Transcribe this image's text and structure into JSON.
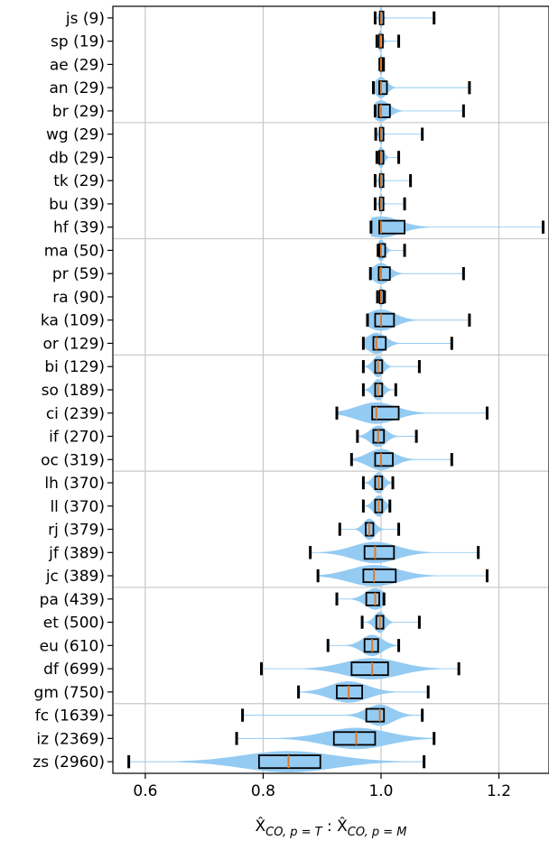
{
  "chart_data": {
    "type": "violin-box",
    "orientation": "horizontal",
    "xlabel_parts": {
      "base": "X̂",
      "sub_left": "CO, p = T",
      "separator": " : ",
      "sub_right": "CO, p = M"
    },
    "xlim": [
      0.545,
      1.285
    ],
    "xticks": [
      0.6,
      0.8,
      1.0,
      1.2
    ],
    "xtick_labels": [
      "0.6",
      "0.8",
      "1.0",
      "1.2"
    ],
    "grid": true,
    "group_separators_after": [
      5,
      10,
      15,
      20,
      25,
      30
    ],
    "colors": {
      "violin": "#8ec8f2",
      "box": "#000000",
      "median": "#e07b2a",
      "grid": "#c8c8c8",
      "whisker_cap": "#000000"
    },
    "categories": [
      {
        "label": "js (9)",
        "min": 0.99,
        "q1": 0.998,
        "median": 1.0,
        "q3": 1.0,
        "max": 1.09
      },
      {
        "label": "sp (19)",
        "min": 0.993,
        "q1": 0.997,
        "median": 0.999,
        "q3": 1.002,
        "max": 1.03
      },
      {
        "label": "ae (29)",
        "min": 0.998,
        "q1": 0.999,
        "median": 1.0,
        "q3": 1.0,
        "max": 1.002
      },
      {
        "label": "an (29)",
        "min": 0.987,
        "q1": 0.997,
        "median": 1.0,
        "q3": 1.01,
        "max": 1.15
      },
      {
        "label": "br (29)",
        "min": 0.99,
        "q1": 0.996,
        "median": 1.0,
        "q3": 1.015,
        "max": 1.14
      },
      {
        "label": "wg (29)",
        "min": 0.991,
        "q1": 0.998,
        "median": 1.0,
        "q3": 1.002,
        "max": 1.07
      },
      {
        "label": "db (29)",
        "min": 0.993,
        "q1": 0.997,
        "median": 1.0,
        "q3": 1.004,
        "max": 1.03
      },
      {
        "label": "tk (29)",
        "min": 0.99,
        "q1": 0.998,
        "median": 1.0,
        "q3": 1.0,
        "max": 1.05
      },
      {
        "label": "bu (39)",
        "min": 0.99,
        "q1": 0.998,
        "median": 1.0,
        "q3": 1.0,
        "max": 1.04
      },
      {
        "label": "hf (39)",
        "min": 0.983,
        "q1": 0.997,
        "median": 1.0,
        "q3": 1.04,
        "max": 1.275
      },
      {
        "label": "ma (50)",
        "min": 0.995,
        "q1": 0.998,
        "median": 1.0,
        "q3": 1.007,
        "max": 1.04
      },
      {
        "label": "pr (59)",
        "min": 0.982,
        "q1": 0.996,
        "median": 1.0,
        "q3": 1.015,
        "max": 1.14
      },
      {
        "label": "ra (90)",
        "min": 0.994,
        "q1": 0.998,
        "median": 1.0,
        "q3": 1.002,
        "max": 1.006
      },
      {
        "label": "ka (109)",
        "min": 0.977,
        "q1": 0.99,
        "median": 1.0,
        "q3": 1.022,
        "max": 1.15
      },
      {
        "label": "or (129)",
        "min": 0.97,
        "q1": 0.987,
        "median": 0.992,
        "q3": 1.008,
        "max": 1.12
      },
      {
        "label": "bi (129)",
        "min": 0.97,
        "q1": 0.99,
        "median": 0.995,
        "q3": 1.002,
        "max": 1.065
      },
      {
        "label": "so (189)",
        "min": 0.97,
        "q1": 0.99,
        "median": 0.995,
        "q3": 1.002,
        "max": 1.025
      },
      {
        "label": "ci (239)",
        "min": 0.925,
        "q1": 0.985,
        "median": 0.992,
        "q3": 1.03,
        "max": 1.18
      },
      {
        "label": "if (270)",
        "min": 0.96,
        "q1": 0.987,
        "median": 0.995,
        "q3": 1.005,
        "max": 1.06
      },
      {
        "label": "oc (319)",
        "min": 0.95,
        "q1": 0.99,
        "median": 1.0,
        "q3": 1.02,
        "max": 1.12
      },
      {
        "label": "lh (370)",
        "min": 0.97,
        "q1": 0.99,
        "median": 0.996,
        "q3": 1.002,
        "max": 1.02
      },
      {
        "label": "ll (370)",
        "min": 0.97,
        "q1": 0.99,
        "median": 0.996,
        "q3": 1.002,
        "max": 1.015
      },
      {
        "label": "rj (379)",
        "min": 0.93,
        "q1": 0.974,
        "median": 0.98,
        "q3": 0.987,
        "max": 1.03
      },
      {
        "label": "jf (389)",
        "min": 0.88,
        "q1": 0.972,
        "median": 0.99,
        "q3": 1.022,
        "max": 1.165
      },
      {
        "label": "jc (389)",
        "min": 0.893,
        "q1": 0.97,
        "median": 0.988,
        "q3": 1.025,
        "max": 1.18
      },
      {
        "label": "pa (439)",
        "min": 0.925,
        "q1": 0.975,
        "median": 0.99,
        "q3": 0.997,
        "max": 1.005
      },
      {
        "label": "et (500)",
        "min": 0.968,
        "q1": 0.992,
        "median": 0.998,
        "q3": 1.004,
        "max": 1.065
      },
      {
        "label": "eu (610)",
        "min": 0.91,
        "q1": 0.972,
        "median": 0.985,
        "q3": 0.995,
        "max": 1.03
      },
      {
        "label": "df (699)",
        "min": 0.797,
        "q1": 0.95,
        "median": 0.985,
        "q3": 1.012,
        "max": 1.132
      },
      {
        "label": "gm (750)",
        "min": 0.86,
        "q1": 0.925,
        "median": 0.945,
        "q3": 0.968,
        "max": 1.08
      },
      {
        "label": "fc (1639)",
        "min": 0.765,
        "q1": 0.975,
        "median": 0.998,
        "q3": 1.005,
        "max": 1.07
      },
      {
        "label": "iz (2369)",
        "min": 0.755,
        "q1": 0.92,
        "median": 0.958,
        "q3": 0.99,
        "max": 1.09
      },
      {
        "label": "zs (2960)",
        "min": 0.572,
        "q1": 0.793,
        "median": 0.843,
        "q3": 0.897,
        "max": 1.073
      }
    ]
  }
}
